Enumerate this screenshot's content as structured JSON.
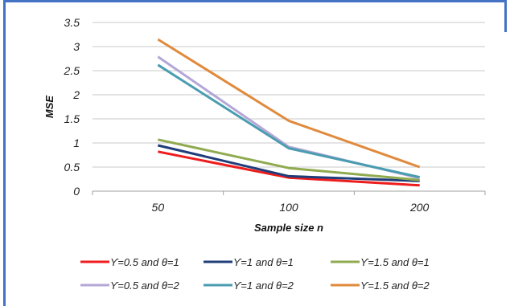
{
  "chart_data": {
    "type": "line",
    "categories": [
      "50",
      "100",
      "200"
    ],
    "ylabel": "MSE",
    "xlabel": "Sample size n",
    "ylim": [
      0,
      3.5
    ],
    "yticks": [
      "0",
      "0.5",
      "1",
      "1.5",
      "2",
      "2.5",
      "3",
      "3.5"
    ],
    "grid": true,
    "legend": "bottom",
    "series": [
      {
        "name": "ϒ=0.5 and θ=1",
        "color": "#ee1c1c",
        "values": [
          0.82,
          0.28,
          0.12
        ]
      },
      {
        "name": "ϒ=1 and θ=1",
        "color": "#1f3d7a",
        "values": [
          0.95,
          0.31,
          0.21
        ]
      },
      {
        "name": "ϒ=1.5 and θ=1",
        "color": "#8faa4f",
        "values": [
          1.07,
          0.48,
          0.23
        ]
      },
      {
        "name": "ϒ=0.5 and θ=2",
        "color": "#b4a7d6",
        "values": [
          2.79,
          0.92,
          0.27
        ]
      },
      {
        "name": "ϒ=1 and θ=2",
        "color": "#4a9db0",
        "values": [
          2.62,
          0.89,
          0.29
        ]
      },
      {
        "name": "ϒ=1.5 and θ=2",
        "color": "#e08a3c",
        "values": [
          3.15,
          1.46,
          0.5
        ]
      }
    ]
  }
}
